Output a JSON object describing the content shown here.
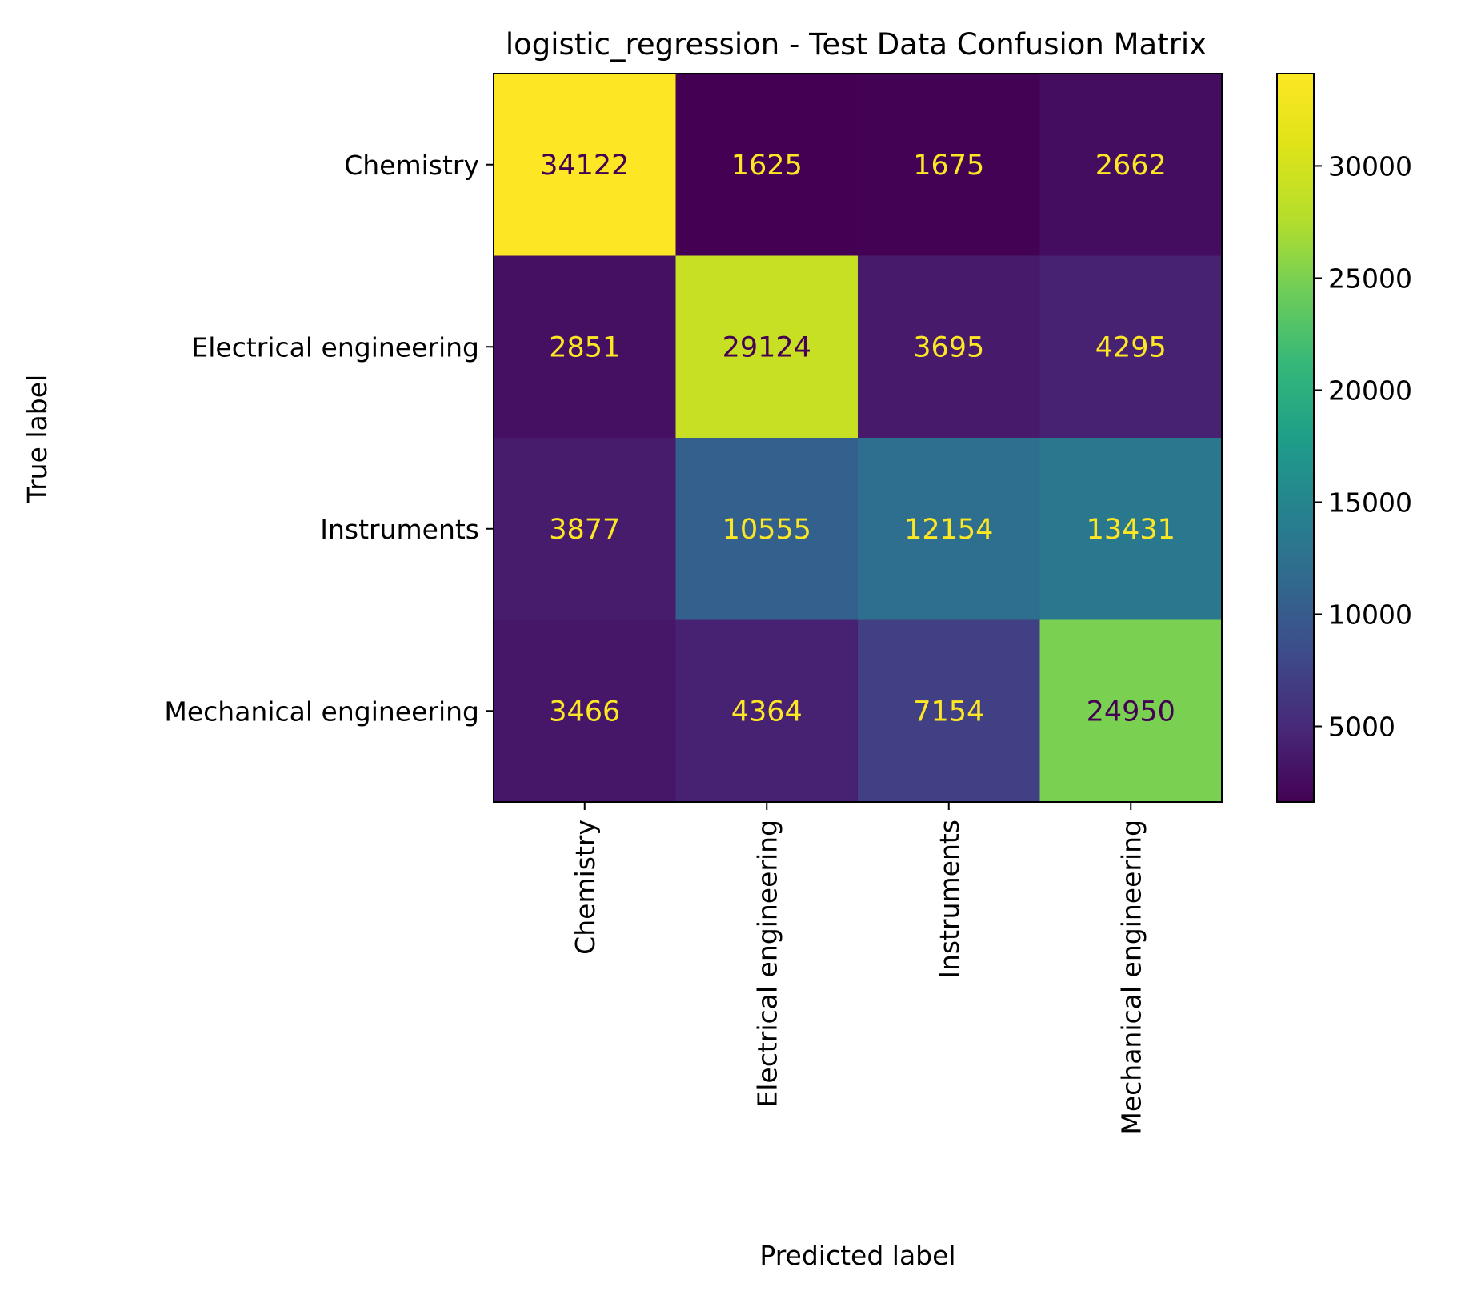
{
  "chart_data": {
    "type": "heatmap",
    "title": "logistic_regression - Test Data Confusion Matrix",
    "xlabel": "Predicted label",
    "ylabel": "True label",
    "x_categories": [
      "Chemistry",
      "Electrical engineering",
      "Instruments",
      "Mechanical engineering"
    ],
    "y_categories": [
      "Chemistry",
      "Electrical engineering",
      "Instruments",
      "Mechanical engineering"
    ],
    "values": [
      [
        34122,
        1625,
        1675,
        2662
      ],
      [
        2851,
        29124,
        3695,
        4295
      ],
      [
        3877,
        10555,
        12154,
        13431
      ],
      [
        3466,
        4364,
        7154,
        24950
      ]
    ],
    "colormap": "viridis",
    "color_range": [
      1625,
      34122
    ],
    "colorbar_ticks": [
      5000,
      10000,
      15000,
      20000,
      25000,
      30000
    ]
  }
}
